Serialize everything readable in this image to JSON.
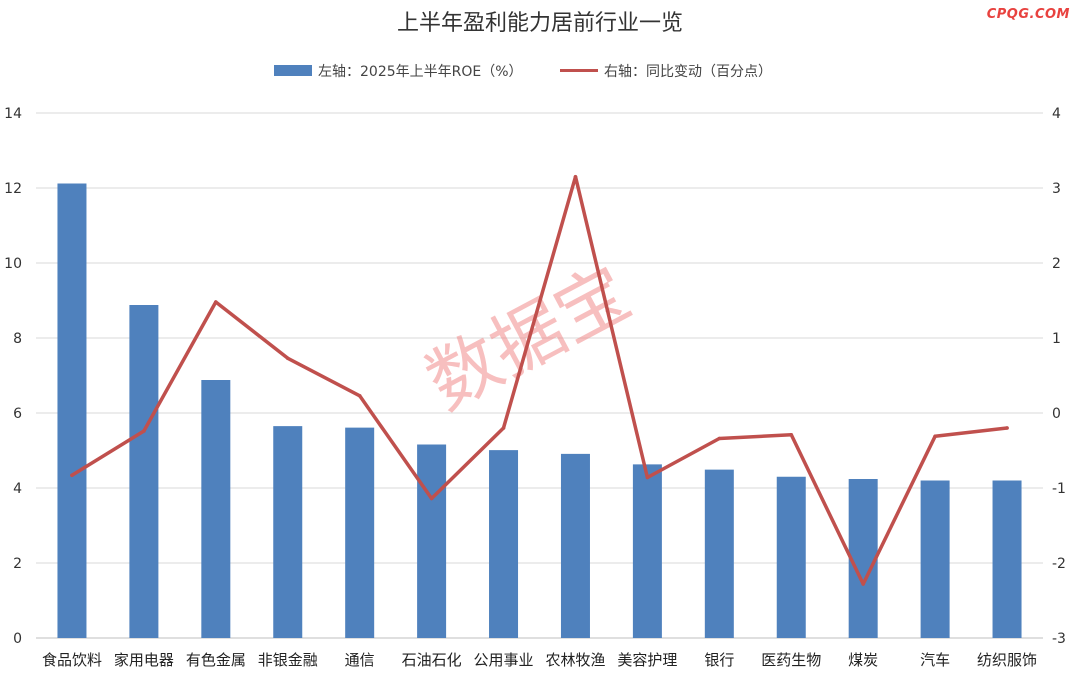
{
  "title": "上半年盈利能力居前行业一览",
  "brand": "CPQG.COM",
  "watermark": "数据宝",
  "colors": {
    "bar": "#4f81bd",
    "line": "#c0504d"
  },
  "legend": {
    "bar_label": "左轴：2025年上半年ROE（%）",
    "line_label": "右轴：同比变动（百分点）"
  },
  "chart_data": {
    "type": "bar",
    "title": "上半年盈利能力居前行业一览",
    "categories": [
      "食品饮料",
      "家用电器",
      "有色金属",
      "非银金融",
      "通信",
      "石油石化",
      "公用事业",
      "农林牧渔",
      "美容护理",
      "银行",
      "医药生物",
      "煤炭",
      "汽车",
      "纺织服饰"
    ],
    "series": [
      {
        "name": "左轴：2025年上半年ROE（%）",
        "type": "bar",
        "axis": "left",
        "values": [
          12.12,
          8.88,
          6.88,
          5.65,
          5.61,
          5.16,
          5.01,
          4.91,
          4.63,
          4.49,
          4.3,
          4.24,
          4.2,
          4.2
        ]
      },
      {
        "name": "右轴：同比变动（百分点）",
        "type": "line",
        "axis": "right",
        "values": [
          -0.83,
          -0.24,
          1.48,
          0.73,
          0.23,
          -1.14,
          -0.2,
          3.15,
          -0.86,
          -0.34,
          -0.29,
          -2.28,
          -0.31,
          -0.2
        ]
      }
    ],
    "ylim_left": [
      0,
      14
    ],
    "yticks_left": [
      0,
      2,
      4,
      6,
      8,
      10,
      12,
      14
    ],
    "ylim_right": [
      -3,
      4
    ],
    "yticks_right": [
      -3,
      -2,
      -1,
      0,
      1,
      2,
      3,
      4
    ],
    "legend_position": "top-center",
    "grid": true
  }
}
